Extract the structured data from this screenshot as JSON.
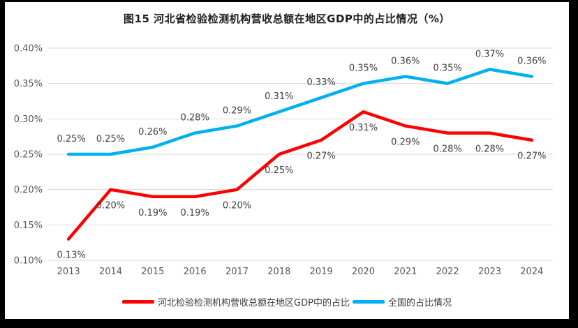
{
  "title": "图15 河北省检验检测机构营收总额在地区GDP中的占比情况（%）",
  "colors": {
    "frame": "#000000",
    "canvas_bg": "#ffffff",
    "grid": "#d9d9d9",
    "axis_text": "#595959",
    "data_label_text": "#404040",
    "hebei_red": "#ff0000",
    "national_blue": "#00b0f0"
  },
  "chart_data": {
    "type": "line",
    "title": "图15 河北省检验检测机构营收总额在地区GDP中的占比情况（%）",
    "categories": [
      "2013",
      "2014",
      "2015",
      "2016",
      "2017",
      "2018",
      "2019",
      "2020",
      "2021",
      "2022",
      "2023",
      "2024"
    ],
    "series": [
      {
        "name": "河北检验检测机构营收总额在地区GDP中的占比",
        "color": "#ff0000",
        "values": [
          0.13,
          0.2,
          0.19,
          0.19,
          0.2,
          0.25,
          0.27,
          0.31,
          0.29,
          0.28,
          0.28,
          0.27
        ],
        "labels": [
          "0.13%",
          "0.20%",
          "0.19%",
          "0.19%",
          "0.20%",
          "0.25%",
          "0.27%",
          "0.31%",
          "0.29%",
          "0.28%",
          "0.28%",
          "0.27%"
        ],
        "label_position": "below"
      },
      {
        "name": "全国的占比情况",
        "color": "#00b0f0",
        "values": [
          0.25,
          0.25,
          0.26,
          0.28,
          0.29,
          0.31,
          0.33,
          0.35,
          0.36,
          0.35,
          0.37,
          0.36
        ],
        "labels": [
          "0.25%",
          "0.25%",
          "0.26%",
          "0.28%",
          "0.29%",
          "0.31%",
          "0.33%",
          "0.35%",
          "0.36%",
          "0.35%",
          "0.37%",
          "0.36%"
        ],
        "label_position": "above"
      }
    ],
    "xlabel": "",
    "ylabel": "",
    "ylim": [
      0.1,
      0.4
    ],
    "y_ticks": [
      "0.40%",
      "0.35%",
      "0.30%",
      "0.25%",
      "0.20%",
      "0.15%",
      "0.10%"
    ],
    "grid": true,
    "legend_position": "bottom"
  }
}
